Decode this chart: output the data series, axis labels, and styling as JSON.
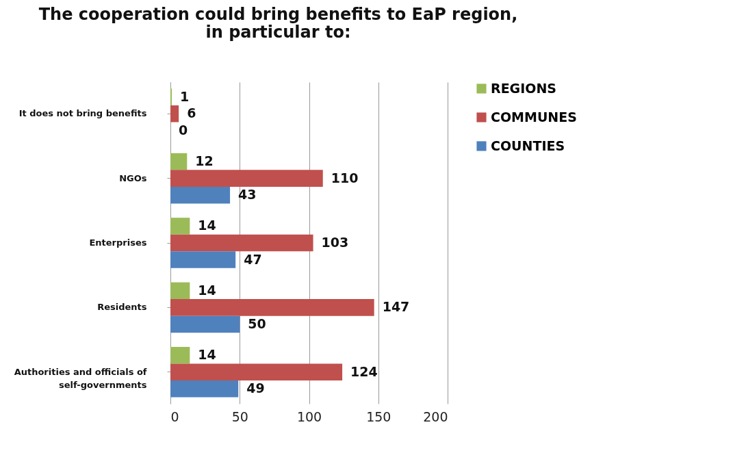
{
  "chart_data": {
    "type": "bar",
    "orientation": "horizontal",
    "title": "The cooperation could bring benefits to EaP region,\nin particular to:",
    "categories": [
      "It does not bring benefits",
      "NGOs",
      "Enterprises",
      "Residents",
      "Authorities and officials of self-governments"
    ],
    "series": [
      {
        "name": "REGIONS",
        "color": "#9bbb59",
        "values": [
          1,
          12,
          14,
          14,
          14
        ]
      },
      {
        "name": "COMMUNES",
        "color": "#c0504d",
        "values": [
          6,
          110,
          103,
          147,
          124
        ]
      },
      {
        "name": "COUNTIES",
        "color": "#4f81bd",
        "values": [
          0,
          43,
          47,
          50,
          49
        ]
      }
    ],
    "xlim": [
      0,
      200
    ],
    "xticks": [
      0,
      50,
      100,
      150,
      200
    ],
    "grid": "x",
    "legend": "right",
    "data_labels": true
  }
}
